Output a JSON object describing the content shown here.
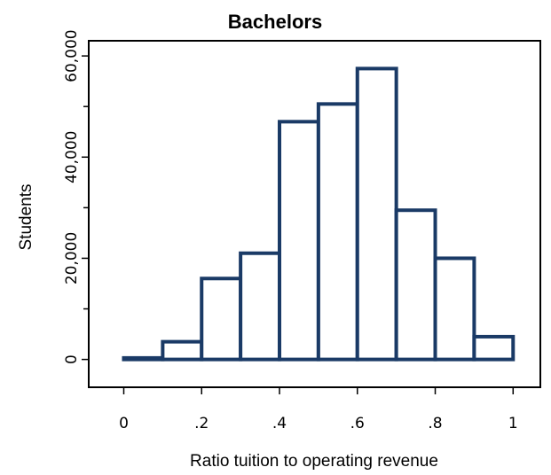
{
  "chart_data": {
    "type": "bar",
    "title": "Bachelors",
    "xlabel": "Ratio tuition to operating revenue",
    "ylabel": "Students",
    "bin_edges": [
      0,
      0.1,
      0.2,
      0.3,
      0.4,
      0.5,
      0.6,
      0.7,
      0.8,
      0.9,
      1.0
    ],
    "values": [
      300,
      3500,
      16000,
      21000,
      47000,
      50500,
      57500,
      29500,
      20000,
      4500
    ],
    "xlim": [
      -0.09,
      1.07
    ],
    "ylim": [
      -5500,
      63000
    ],
    "x_ticks": [
      {
        "value": 0,
        "label": "0"
      },
      {
        "value": 0.2,
        "label": ".2"
      },
      {
        "value": 0.4,
        "label": ".4"
      },
      {
        "value": 0.6,
        "label": ".6"
      },
      {
        "value": 0.8,
        "label": ".8"
      },
      {
        "value": 1,
        "label": "1"
      }
    ],
    "y_ticks": [
      {
        "value": 0,
        "label": "0"
      },
      {
        "value": 20000,
        "label": "20,000"
      },
      {
        "value": 40000,
        "label": "40,000"
      },
      {
        "value": 60000,
        "label": "60,000"
      }
    ],
    "y_minor_ticks": [
      10000,
      30000,
      50000
    ],
    "grid": false,
    "colors": {
      "bar_edge": "#1a3a66",
      "bar_fill": "#ffffff"
    }
  }
}
